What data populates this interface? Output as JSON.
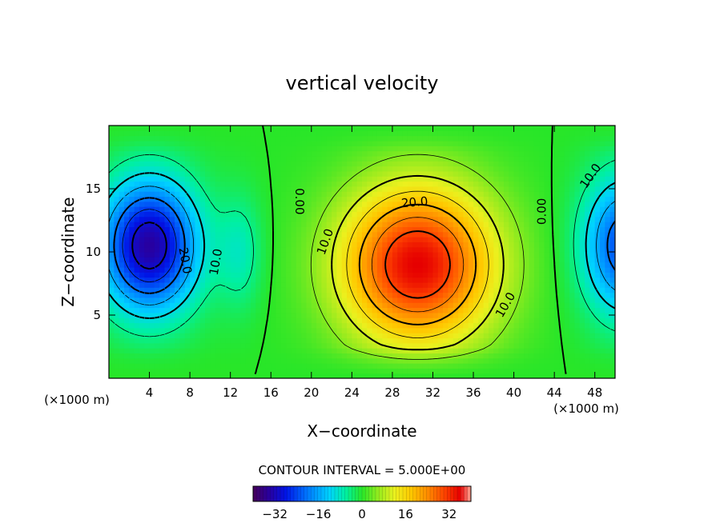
{
  "chart_data": {
    "type": "heatmap",
    "title": "vertical velocity",
    "xlabel": "X−coordinate",
    "ylabel": "Z−coordinate",
    "x_unit_left": "(×1000 m)",
    "x_unit_right": "(×1000 m)",
    "xlim": [
      0,
      50
    ],
    "ylim": [
      0,
      20
    ],
    "x_ticks": [
      4,
      8,
      12,
      16,
      20,
      24,
      28,
      32,
      36,
      40,
      44,
      48
    ],
    "y_ticks": [
      5,
      10,
      15
    ],
    "contour_interval_text": "CONTOUR INTERVAL = 5.000E+00",
    "contour_labels": [
      {
        "text": "0.00",
        "x": 18.8,
        "z": 14.0,
        "angle": 90
      },
      {
        "text": "0.00",
        "x": 42.8,
        "z": 13.2,
        "angle": -90
      },
      {
        "text": "20.0",
        "x": 30.2,
        "z": 13.9,
        "angle": -5
      },
      {
        "text": "10.0",
        "x": 21.4,
        "z": 10.8,
        "angle": -70
      },
      {
        "text": "10.0",
        "x": 39.2,
        "z": 5.8,
        "angle": -60
      },
      {
        "text": "10.0",
        "x": 10.6,
        "z": 9.2,
        "angle": -80
      },
      {
        "text": "20.0",
        "x": 7.5,
        "z": 9.3,
        "angle": 80
      },
      {
        "text": "10.0",
        "x": 47.6,
        "z": 16.0,
        "angle": -55
      }
    ],
    "colorbar": {
      "min": -40,
      "max": 40,
      "ticks": [
        "−32",
        "−16",
        "0",
        "16",
        "32"
      ],
      "tick_values": [
        -32,
        -16,
        0,
        16,
        32
      ]
    },
    "field": {
      "positive_center": {
        "x": 30.5,
        "z": 9.0,
        "peak": 36
      },
      "negative_center": {
        "x": 4.0,
        "z": 10.5,
        "peak": -34
      },
      "negative_right_edge": {
        "x": 51.0,
        "z": 10.5,
        "peak": -24
      }
    }
  }
}
